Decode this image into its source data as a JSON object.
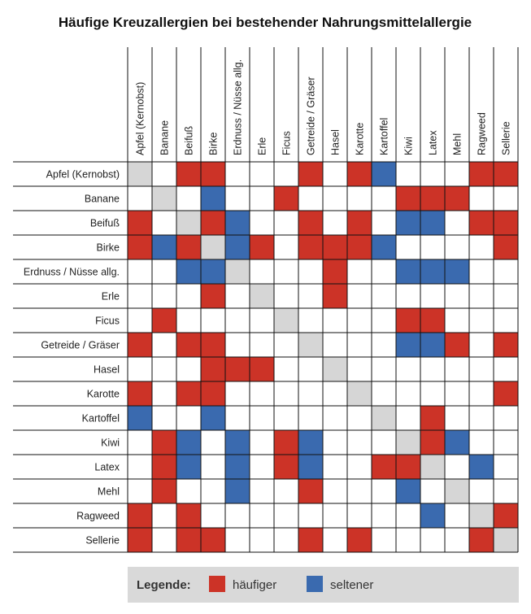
{
  "chart_data": {
    "type": "heatmap",
    "title": "Häufige Kreuzallergien bei bestehender Nahrungsmittelallergie",
    "rows": [
      "Apfel (Kernobst)",
      "Banane",
      "Beifuß",
      "Birke",
      "Erdnuss / Nüsse allg.",
      "Erle",
      "Ficus",
      "Getreide / Gräser",
      "Hasel",
      "Karotte",
      "Kartoffel",
      "Kiwi",
      "Latex",
      "Mehl",
      "Ragweed",
      "Sellerie"
    ],
    "columns": [
      "Apfel (Kernobst)",
      "Banane",
      "Beifuß",
      "Birke",
      "Erdnuss / Nüsse allg.",
      "Erle",
      "Ficus",
      "Getreide / Gräser",
      "Hasel",
      "Karotte",
      "Kartoffel",
      "Kiwi",
      "Latex",
      "Mehl",
      "Ragweed",
      "Sellerie"
    ],
    "encoding": {
      "0": "keine",
      "1": "häufiger",
      "2": "seltener",
      "-1": "diagonal"
    },
    "values": [
      [
        -1,
        0,
        1,
        1,
        0,
        0,
        0,
        1,
        0,
        1,
        2,
        0,
        0,
        0,
        1,
        1
      ],
      [
        0,
        -1,
        0,
        2,
        0,
        0,
        1,
        0,
        0,
        0,
        0,
        1,
        1,
        1,
        0,
        0
      ],
      [
        1,
        0,
        -1,
        1,
        2,
        0,
        0,
        1,
        0,
        1,
        0,
        2,
        2,
        0,
        1,
        1
      ],
      [
        1,
        2,
        1,
        -1,
        2,
        1,
        0,
        1,
        1,
        1,
        2,
        0,
        0,
        0,
        0,
        1
      ],
      [
        0,
        0,
        2,
        2,
        -1,
        0,
        0,
        0,
        1,
        0,
        0,
        2,
        2,
        2,
        0,
        0
      ],
      [
        0,
        0,
        0,
        1,
        0,
        -1,
        0,
        0,
        1,
        0,
        0,
        0,
        0,
        0,
        0,
        0
      ],
      [
        0,
        1,
        0,
        0,
        0,
        0,
        -1,
        0,
        0,
        0,
        0,
        1,
        1,
        0,
        0,
        0
      ],
      [
        1,
        0,
        1,
        1,
        0,
        0,
        0,
        -1,
        0,
        0,
        0,
        2,
        2,
        1,
        0,
        1
      ],
      [
        0,
        0,
        0,
        1,
        1,
        1,
        0,
        0,
        -1,
        0,
        0,
        0,
        0,
        0,
        0,
        0
      ],
      [
        1,
        0,
        1,
        1,
        0,
        0,
        0,
        0,
        0,
        -1,
        0,
        0,
        0,
        0,
        0,
        1
      ],
      [
        2,
        0,
        0,
        2,
        0,
        0,
        0,
        0,
        0,
        0,
        -1,
        0,
        1,
        0,
        0,
        0
      ],
      [
        0,
        1,
        2,
        0,
        2,
        0,
        1,
        2,
        0,
        0,
        0,
        -1,
        1,
        2,
        0,
        0
      ],
      [
        0,
        1,
        2,
        0,
        2,
        0,
        1,
        2,
        0,
        0,
        1,
        1,
        -1,
        0,
        2,
        0
      ],
      [
        0,
        1,
        0,
        0,
        2,
        0,
        0,
        1,
        0,
        0,
        0,
        2,
        0,
        -1,
        0,
        0
      ],
      [
        1,
        0,
        1,
        0,
        0,
        0,
        0,
        0,
        0,
        0,
        0,
        0,
        2,
        0,
        -1,
        1
      ],
      [
        1,
        0,
        1,
        1,
        0,
        0,
        0,
        1,
        0,
        1,
        0,
        0,
        0,
        0,
        1,
        -1
      ]
    ],
    "colors": {
      "häufiger": "#cc3327",
      "seltener": "#3a6aaf",
      "diagonal": "#d6d6d6",
      "none": "#ffffff",
      "grid": "#111111"
    },
    "legend": {
      "title": "Legende:",
      "items": [
        "häufiger",
        "seltener"
      ],
      "placement": "bottom"
    }
  }
}
